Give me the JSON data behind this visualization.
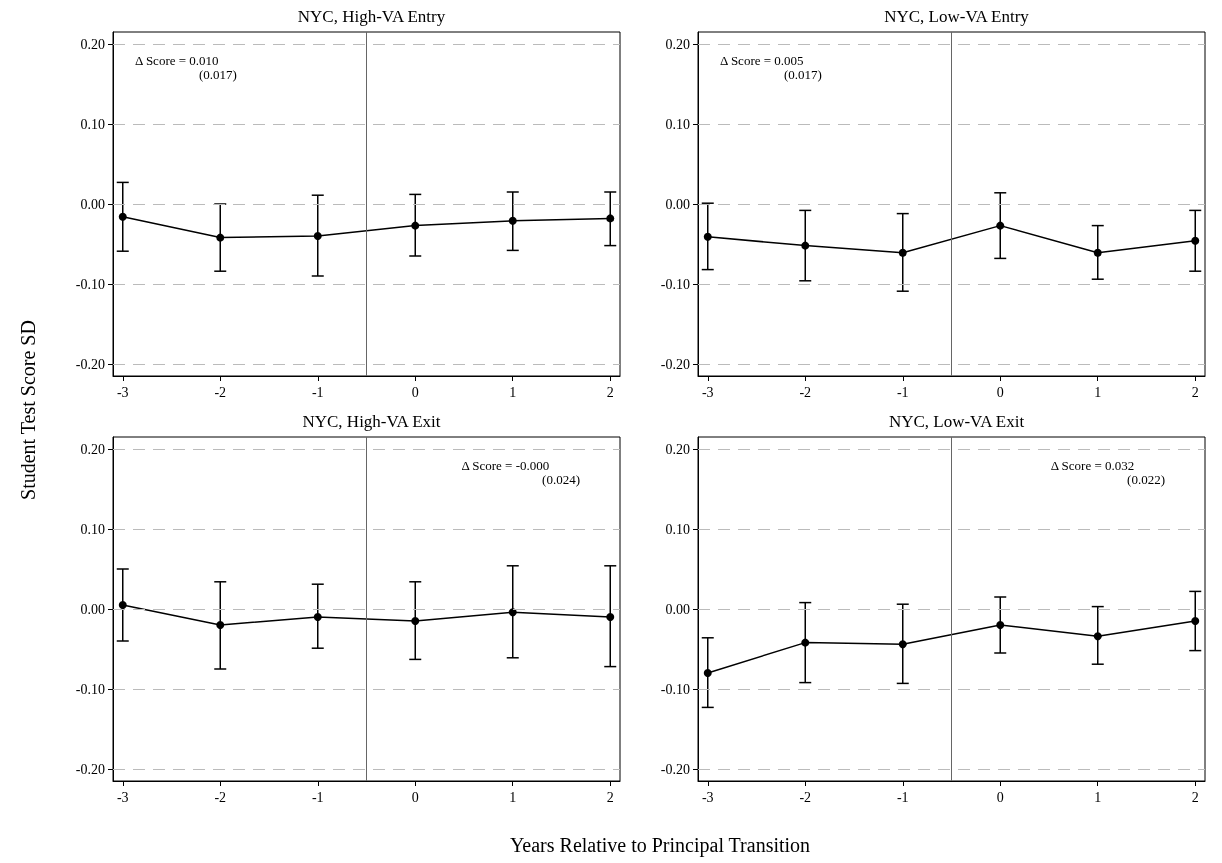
{
  "chart_data": [
    {
      "type": "line",
      "title": "NYC, High-VA Entry",
      "ylabel": "Student Test Score SD",
      "x": [
        -3,
        -2,
        -1,
        0,
        1,
        2
      ],
      "series": [
        {
          "color": "#000000",
          "values": [
            -0.016,
            -0.042,
            -0.04,
            -0.027,
            -0.021,
            -0.018
          ],
          "errors": [
            [
              -0.059,
              0.027
            ],
            [
              -0.084,
              0.0
            ],
            [
              -0.09,
              0.011
            ],
            [
              -0.065,
              0.012
            ],
            [
              -0.058,
              0.015
            ],
            [
              -0.052,
              0.015
            ]
          ]
        }
      ],
      "xlim": [
        -3.1,
        2.1
      ],
      "xticks": [
        -3,
        -2,
        -1,
        0,
        1,
        2
      ],
      "ylim": [
        -0.215,
        0.215
      ],
      "yticks": [
        {
          "value": -0.2,
          "label": "-0.20"
        },
        {
          "value": -0.1,
          "label": "-0.10"
        },
        {
          "value": 0,
          "label": "0.00"
        },
        {
          "value": 0.1,
          "label": "0.10"
        },
        {
          "value": 0.2,
          "label": "0.20"
        }
      ],
      "ref_lines": [
        {
          "axis": "x",
          "value": -0.5,
          "color": "#666666"
        }
      ],
      "annotations": [
        "Δ Score = 0.010",
        "(0.017)"
      ],
      "grid": "y",
      "marker": "circle",
      "line_style": "solid"
    },
    {
      "type": "line",
      "title": "NYC, Low-VA Entry",
      "x": [
        -3,
        -2,
        -1,
        0,
        1,
        2
      ],
      "series": [
        {
          "color": "#000000",
          "values": [
            -0.041,
            -0.052,
            -0.061,
            -0.027,
            -0.061,
            -0.046
          ],
          "errors": [
            [
              -0.082,
              0.001
            ],
            [
              -0.096,
              -0.008
            ],
            [
              -0.109,
              -0.012
            ],
            [
              -0.068,
              0.014
            ],
            [
              -0.094,
              -0.027
            ],
            [
              -0.084,
              -0.008
            ]
          ]
        }
      ],
      "xlim": [
        -3.1,
        2.1
      ],
      "xticks": [
        -3,
        -2,
        -1,
        0,
        1,
        2
      ],
      "ylim": [
        -0.215,
        0.215
      ],
      "yticks": [
        {
          "value": -0.2,
          "label": "-0.20"
        },
        {
          "value": -0.1,
          "label": "-0.10"
        },
        {
          "value": 0,
          "label": "0.00"
        },
        {
          "value": 0.1,
          "label": "0.10"
        },
        {
          "value": 0.2,
          "label": "0.20"
        }
      ],
      "ref_lines": [
        {
          "axis": "x",
          "value": -0.5,
          "color": "#666666"
        }
      ],
      "annotations": [
        "Δ Score = 0.005",
        "(0.017)"
      ],
      "grid": "y",
      "marker": "circle",
      "line_style": "solid"
    },
    {
      "type": "line",
      "title": "NYC, High-VA Exit",
      "xlabel": "Years Relative to Principal Transition",
      "x": [
        -3,
        -2,
        -1,
        0,
        1,
        2
      ],
      "series": [
        {
          "color": "#000000",
          "values": [
            0.005,
            -0.02,
            -0.01,
            -0.015,
            -0.004,
            -0.01
          ],
          "errors": [
            [
              -0.04,
              0.05
            ],
            [
              -0.075,
              0.034
            ],
            [
              -0.049,
              0.031
            ],
            [
              -0.063,
              0.034
            ],
            [
              -0.061,
              0.054
            ],
            [
              -0.072,
              0.054
            ]
          ]
        }
      ],
      "xlim": [
        -3.1,
        2.1
      ],
      "xticks": [
        -3,
        -2,
        -1,
        0,
        1,
        2
      ],
      "ylim": [
        -0.215,
        0.215
      ],
      "yticks": [
        {
          "value": -0.2,
          "label": "-0.20"
        },
        {
          "value": -0.1,
          "label": "-0.10"
        },
        {
          "value": 0,
          "label": "0.00"
        },
        {
          "value": 0.1,
          "label": "0.10"
        },
        {
          "value": 0.2,
          "label": "0.20"
        }
      ],
      "ref_lines": [
        {
          "axis": "x",
          "value": -0.5,
          "color": "#666666"
        }
      ],
      "annotations": [
        "Δ Score = -0.000",
        "(0.024)"
      ],
      "grid": "y",
      "marker": "circle",
      "line_style": "solid"
    },
    {
      "type": "line",
      "title": "NYC, Low-VA Exit",
      "x": [
        -3,
        -2,
        -1,
        0,
        1,
        2
      ],
      "series": [
        {
          "color": "#000000",
          "values": [
            -0.08,
            -0.042,
            -0.044,
            -0.02,
            -0.034,
            -0.015
          ],
          "errors": [
            [
              -0.123,
              -0.036
            ],
            [
              -0.092,
              0.008
            ],
            [
              -0.093,
              0.006
            ],
            [
              -0.055,
              0.015
            ],
            [
              -0.069,
              0.003
            ],
            [
              -0.052,
              0.022
            ]
          ]
        }
      ],
      "xlim": [
        -3.1,
        2.1
      ],
      "xticks": [
        -3,
        -2,
        -1,
        0,
        1,
        2
      ],
      "ylim": [
        -0.215,
        0.215
      ],
      "yticks": [
        {
          "value": -0.2,
          "label": "-0.20"
        },
        {
          "value": -0.1,
          "label": "-0.10"
        },
        {
          "value": 0,
          "label": "0.00"
        },
        {
          "value": 0.1,
          "label": "0.10"
        },
        {
          "value": 0.2,
          "label": "0.20"
        }
      ],
      "ref_lines": [
        {
          "axis": "x",
          "value": -0.5,
          "color": "#666666"
        }
      ],
      "annotations": [
        "Δ Score = 0.032",
        "(0.022)"
      ],
      "grid": "y",
      "marker": "circle",
      "line_style": "solid"
    }
  ]
}
